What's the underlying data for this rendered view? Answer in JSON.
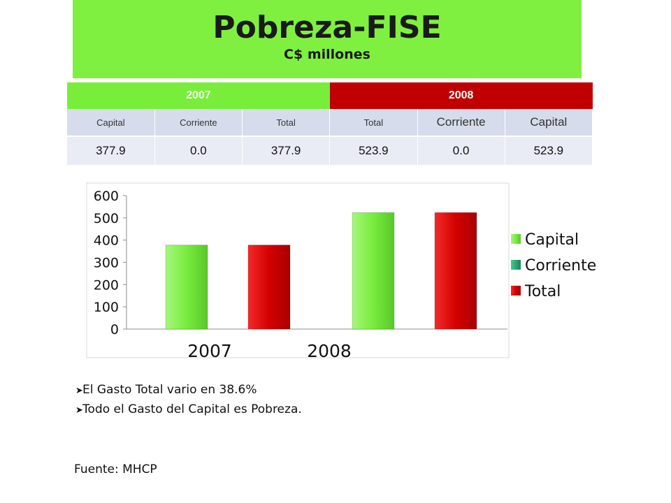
{
  "header": {
    "title": "Pobreza-FISE",
    "subtitle": "C$ millones"
  },
  "table": {
    "years": [
      "2007",
      "2008"
    ],
    "columns": [
      "Capital",
      "Corriente",
      "Total",
      "Total",
      "Corriente",
      "Capital"
    ],
    "values": [
      "377.9",
      "0.0",
      "377.9",
      "523.9",
      "0.0",
      "523.9"
    ]
  },
  "colors": {
    "capital": "#72e63a",
    "corriente": "#1fa070",
    "total": "#d40000"
  },
  "chart_data": {
    "type": "bar",
    "categories": [
      "2007",
      "2008"
    ],
    "series": [
      {
        "name": "Capital",
        "values": [
          377.9,
          523.9
        ]
      },
      {
        "name": "Corriente",
        "values": [
          0.0,
          0.0
        ]
      },
      {
        "name": "Total",
        "values": [
          377.9,
          523.9
        ]
      }
    ],
    "ylim": [
      0,
      600
    ],
    "yticks": [
      "0",
      "100",
      "200",
      "300",
      "400",
      "500",
      "600"
    ],
    "legend": "right",
    "grid": false
  },
  "bullets": [
    "El Gasto Total vario en 38.6%",
    "Todo el Gasto del Capital es Pobreza."
  ],
  "source": "Fuente: MHCP"
}
